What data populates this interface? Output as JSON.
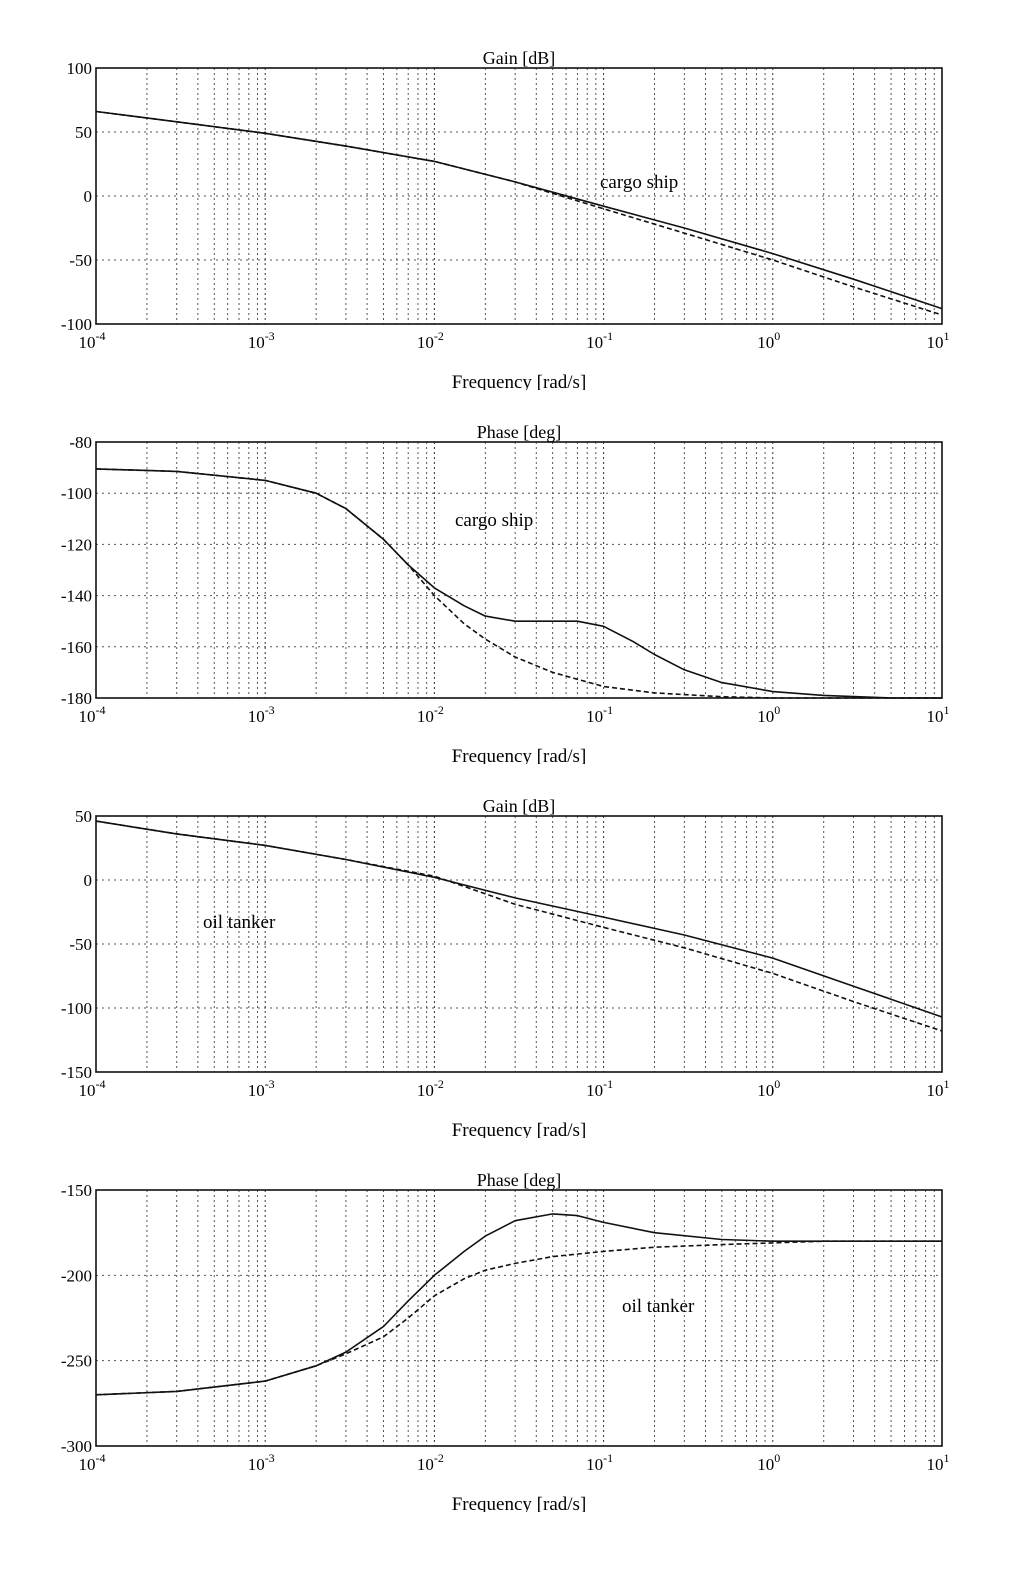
{
  "chart_data": [
    {
      "type": "line",
      "title": "Gain [dB]",
      "xlabel": "Frequency [rad/s]",
      "ylabel": "",
      "xscale": "log",
      "xlim": [
        0.0001,
        10
      ],
      "ylim": [
        -100,
        100
      ],
      "xtick_exponents": [
        "-4",
        "-3",
        "-2",
        "-1",
        "0",
        "1"
      ],
      "yticks": [
        "100",
        "50",
        "0",
        "-50",
        "-100"
      ],
      "grid": true,
      "annotation": "cargo ship",
      "series": [
        {
          "style": "solid",
          "x": [
            0.0001,
            0.0003,
            0.001,
            0.003,
            0.01,
            0.03,
            0.05,
            0.1,
            0.3,
            1,
            3,
            10
          ],
          "y": [
            66,
            58,
            49,
            39,
            27,
            11,
            3,
            -8,
            -25,
            -45,
            -65,
            -88
          ]
        },
        {
          "style": "dashed",
          "x": [
            0.0001,
            0.0003,
            0.001,
            0.003,
            0.01,
            0.03,
            0.05,
            0.1,
            0.3,
            1,
            3,
            10
          ],
          "y": [
            66,
            58,
            49,
            39,
            27,
            11,
            2,
            -10,
            -29,
            -50,
            -71,
            -93
          ]
        }
      ]
    },
    {
      "type": "line",
      "title": "Phase [deg]",
      "xlabel": "Frequency [rad/s]",
      "ylabel": "",
      "xscale": "log",
      "xlim": [
        0.0001,
        10
      ],
      "ylim": [
        -180,
        -80
      ],
      "xtick_exponents": [
        "-4",
        "-3",
        "-2",
        "-1",
        "0",
        "1"
      ],
      "yticks": [
        "-80",
        "-100",
        "-120",
        "-140",
        "-160",
        "-180"
      ],
      "grid": true,
      "annotation": "cargo ship",
      "series": [
        {
          "style": "solid",
          "x": [
            0.0001,
            0.0003,
            0.001,
            0.002,
            0.003,
            0.005,
            0.007,
            0.01,
            0.015,
            0.02,
            0.03,
            0.05,
            0.07,
            0.1,
            0.15,
            0.2,
            0.3,
            0.5,
            1,
            2,
            5,
            10
          ],
          "y": [
            -90.5,
            -91.5,
            -95,
            -100,
            -106,
            -118,
            -128,
            -137,
            -144,
            -148,
            -150,
            -150,
            -150,
            -152,
            -158,
            -163,
            -169,
            -174,
            -177.5,
            -179,
            -180,
            -180
          ]
        },
        {
          "style": "dashed",
          "x": [
            0.0001,
            0.0003,
            0.001,
            0.002,
            0.003,
            0.005,
            0.007,
            0.01,
            0.015,
            0.02,
            0.03,
            0.05,
            0.1,
            0.2,
            0.5,
            1,
            10
          ],
          "y": [
            -90.5,
            -91.5,
            -95,
            -100,
            -106,
            -118,
            -128,
            -140,
            -151,
            -157,
            -164,
            -170,
            -175.5,
            -178,
            -179.5,
            -180,
            -180
          ]
        }
      ]
    },
    {
      "type": "line",
      "title": "Gain [dB]",
      "xlabel": "Frequency [rad/s]",
      "ylabel": "",
      "xscale": "log",
      "xlim": [
        0.0001,
        10
      ],
      "ylim": [
        -150,
        50
      ],
      "xtick_exponents": [
        "-4",
        "-3",
        "-2",
        "-1",
        "0",
        "1"
      ],
      "yticks": [
        "50",
        "0",
        "-50",
        "-100",
        "-150"
      ],
      "grid": true,
      "annotation": "oil tanker",
      "series": [
        {
          "style": "solid",
          "x": [
            0.0001,
            0.0003,
            0.001,
            0.003,
            0.01,
            0.03,
            0.1,
            0.3,
            1,
            3,
            10
          ],
          "y": [
            46,
            36,
            27,
            16,
            2,
            -14,
            -29,
            -43,
            -61,
            -83,
            -107
          ]
        },
        {
          "style": "dashed",
          "x": [
            0.0001,
            0.0003,
            0.001,
            0.003,
            0.01,
            0.015,
            0.03,
            0.1,
            0.3,
            1,
            3,
            10
          ],
          "y": [
            46,
            36,
            27,
            16,
            3,
            -5,
            -19,
            -37,
            -53,
            -73,
            -95,
            -118
          ]
        }
      ]
    },
    {
      "type": "line",
      "title": "Phase [deg]",
      "xlabel": "Frequency [rad/s]",
      "ylabel": "",
      "xscale": "log",
      "xlim": [
        0.0001,
        10
      ],
      "ylim": [
        -300,
        -150
      ],
      "xtick_exponents": [
        "-4",
        "-3",
        "-2",
        "-1",
        "0",
        "1"
      ],
      "yticks": [
        "-150",
        "-200",
        "-250",
        "-300"
      ],
      "grid": true,
      "annotation": "oil tanker",
      "series": [
        {
          "style": "solid",
          "x": [
            0.0001,
            0.0003,
            0.001,
            0.002,
            0.003,
            0.005,
            0.007,
            0.01,
            0.015,
            0.02,
            0.03,
            0.05,
            0.07,
            0.1,
            0.2,
            0.5,
            1,
            2,
            10
          ],
          "y": [
            -270,
            -268,
            -262,
            -253,
            -245,
            -230,
            -215,
            -200,
            -186,
            -177,
            -168,
            -164,
            -165,
            -169,
            -175,
            -179,
            -180,
            -180,
            -180
          ]
        },
        {
          "style": "dashed",
          "x": [
            0.0001,
            0.0003,
            0.001,
            0.002,
            0.003,
            0.005,
            0.007,
            0.01,
            0.015,
            0.02,
            0.03,
            0.05,
            0.1,
            0.2,
            0.5,
            1,
            2,
            10
          ],
          "y": [
            -270,
            -268,
            -262,
            -253,
            -246,
            -236,
            -225,
            -212,
            -202,
            -197,
            -193,
            -189,
            -186,
            -183.5,
            -182,
            -181,
            -180,
            -180
          ]
        }
      ]
    }
  ]
}
